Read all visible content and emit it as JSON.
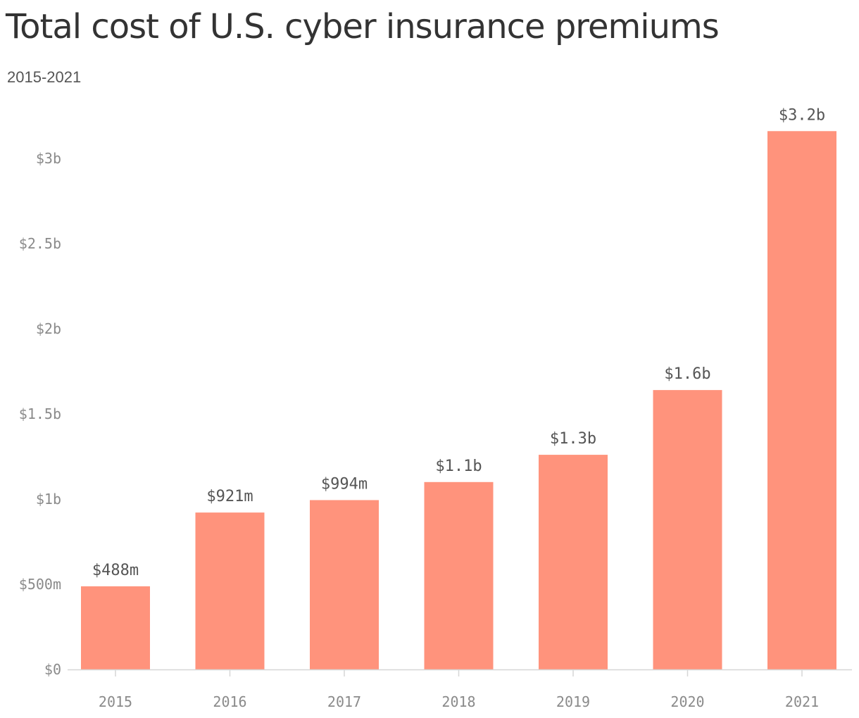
{
  "header": {
    "title": "Total cost of U.S. cyber insurance premiums",
    "subtitle": "2015-2021"
  },
  "colors": {
    "bar": "#ff937c",
    "axis": "#d6d6d6",
    "tick_text": "#8a8a8a",
    "label_text": "#555555"
  },
  "chart_data": {
    "type": "bar",
    "title": "Total cost of U.S. cyber insurance premiums",
    "subtitle": "2015-2021",
    "xlabel": "",
    "ylabel": "",
    "categories": [
      "2015",
      "2016",
      "2017",
      "2018",
      "2019",
      "2020",
      "2021"
    ],
    "values": [
      0.488,
      0.921,
      0.994,
      1.1,
      1.26,
      1.64,
      3.16
    ],
    "value_labels": [
      "$488m",
      "$921m",
      "$994m",
      "$1.1b",
      "$1.3b",
      "$1.6b",
      "$3.2b"
    ],
    "ylim": [
      0,
      3.2
    ],
    "yticks": [
      0,
      0.5,
      1,
      1.5,
      2,
      2.5,
      3
    ],
    "ytick_labels": [
      "$0",
      "$500m",
      "$1b",
      "$1.5b",
      "$2b",
      "$2.5b",
      "$3b"
    ],
    "grid": false,
    "legend": "none"
  }
}
